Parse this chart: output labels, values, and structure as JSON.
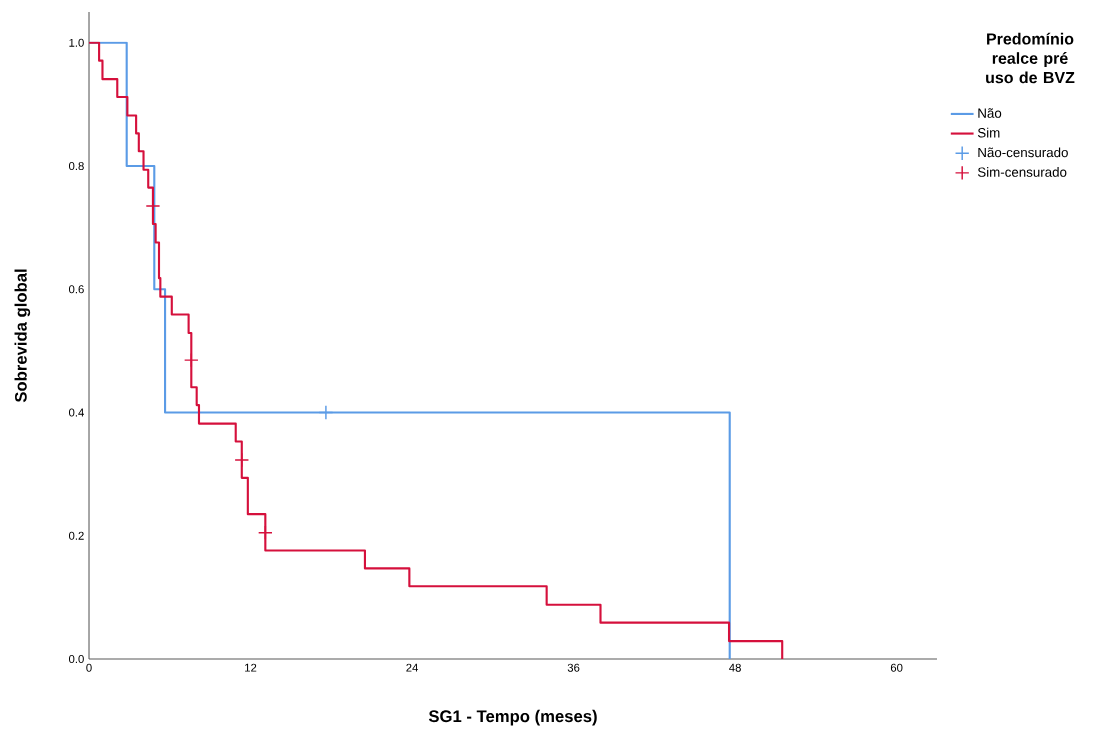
{
  "chart_data": {
    "type": "step",
    "xlabel": "SG1 - Tempo (meses)",
    "ylabel": "Sobrevida global",
    "legend_title": "Predomínio realce pré uso de BVZ",
    "xlim": [
      0,
      63
    ],
    "ylim": [
      0,
      1.05
    ],
    "xticks": [
      0,
      12,
      24,
      36,
      48,
      60
    ],
    "yticks": [
      {
        "value": 0,
        "label": "0.0"
      },
      {
        "value": 0.2,
        "label": "0.2"
      },
      {
        "value": 0.4,
        "label": "0.4"
      },
      {
        "value": 0.6,
        "label": "0.6"
      },
      {
        "value": 0.8,
        "label": "0.8"
      },
      {
        "value": 1,
        "label": "1.0"
      }
    ],
    "legend": "right",
    "grid": false,
    "series": [
      {
        "name": "Não",
        "color": "#5b9be6",
        "x": [
          0,
          2.8,
          4.85,
          5.65,
          47.6
        ],
        "values": [
          1,
          0.8,
          0.6,
          0.4,
          0
        ]
      },
      {
        "name": "Sim",
        "color": "#d5103c",
        "x": [
          0,
          0.75,
          1.0,
          2.1,
          2.85,
          3.5,
          3.7,
          4.05,
          4.4,
          4.75,
          4.95,
          5.2,
          5.3,
          6.15,
          7.4,
          7.6,
          8.0,
          8.17,
          10.9,
          11.35,
          11.8,
          13.1,
          20.5,
          23.8,
          34.0,
          38.0,
          47.55,
          51.5
        ],
        "values": [
          1,
          0.971,
          0.941,
          0.912,
          0.882,
          0.853,
          0.824,
          0.794,
          0.765,
          0.706,
          0.676,
          0.618,
          0.588,
          0.559,
          0.529,
          0.441,
          0.412,
          0.382,
          0.353,
          0.294,
          0.235,
          0.176,
          0.147,
          0.118,
          0.088,
          0.059,
          0.029,
          0
        ]
      },
      {
        "name": "Não-censurado",
        "type": "scatter",
        "marker": "cross",
        "color": "#5b9be6",
        "x": [
          17.6
        ],
        "values": [
          0.4
        ]
      },
      {
        "name": "Sim-censurado",
        "type": "scatter",
        "marker": "cross",
        "color": "#d5103c",
        "x": [
          4.75,
          7.6,
          11.35,
          13.1
        ],
        "values": [
          0.735,
          0.485,
          0.323,
          0.205
        ]
      }
    ]
  }
}
